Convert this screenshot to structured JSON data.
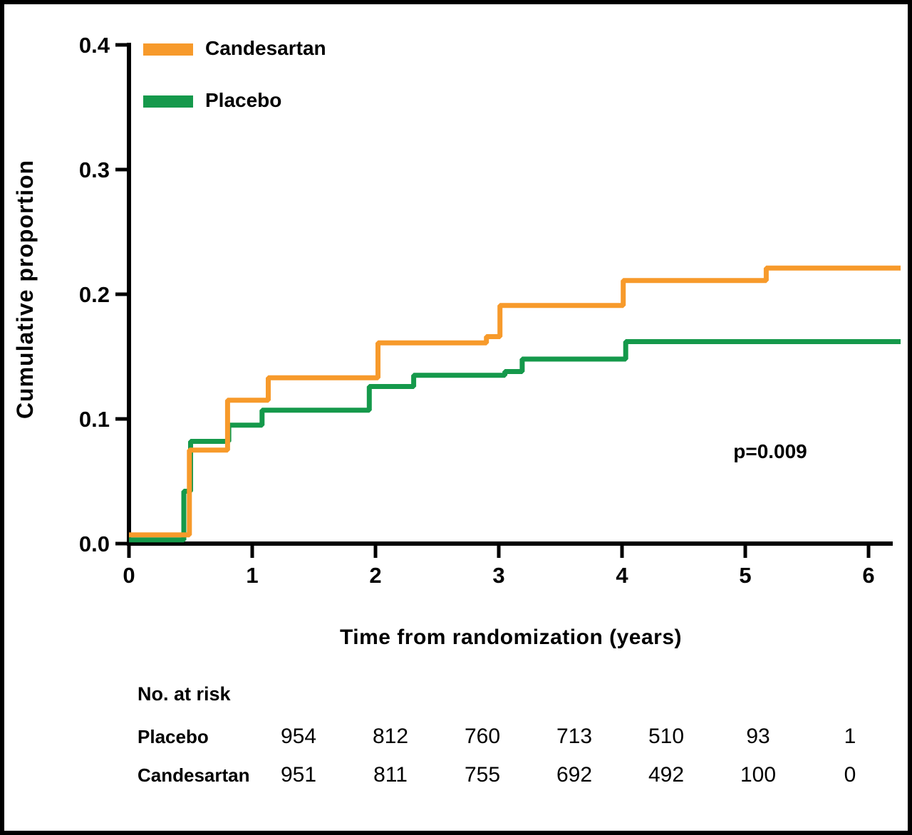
{
  "chart_data": {
    "type": "line",
    "subtype": "kaplan-meier-cumulative-incidence-steps",
    "title": "",
    "xlabel": "Time from randomization (years)",
    "ylabel": "Cumulative proportion",
    "xlim": [
      0,
      6.27
    ],
    "ylim": [
      0,
      0.4
    ],
    "x_ticks": [
      0,
      1,
      2,
      3,
      4,
      5,
      6
    ],
    "x_tick_labels": [
      "0",
      "1",
      "2",
      "3",
      "4",
      "5",
      "6"
    ],
    "y_ticks": [
      0,
      0.1,
      0.2,
      0.3,
      0.4
    ],
    "y_tick_labels": [
      "0.0",
      "0.1",
      "0.2",
      "0.3",
      "0.4"
    ],
    "grid": "off",
    "legend_position": "top-left-inside",
    "annotation": {
      "text": "p=0.009",
      "x": 5.2,
      "y": 0.072
    },
    "series": [
      {
        "name": "Candesartan",
        "color": "#F79A2B",
        "steps": [
          [
            0,
            0.007
          ],
          [
            0.49,
            0.075
          ],
          [
            0.8,
            0.115
          ],
          [
            1.13,
            0.133
          ],
          [
            2.02,
            0.161
          ],
          [
            2.9,
            0.166
          ],
          [
            3.01,
            0.191
          ],
          [
            4.01,
            0.211
          ],
          [
            5.17,
            0.221
          ]
        ],
        "end_x": 6.26
      },
      {
        "name": "Placebo",
        "color": "#15994B",
        "steps": [
          [
            0,
            0.003
          ],
          [
            0.445,
            0.042
          ],
          [
            0.5,
            0.082
          ],
          [
            0.81,
            0.095
          ],
          [
            1.08,
            0.107
          ],
          [
            1.95,
            0.126
          ],
          [
            2.31,
            0.135
          ],
          [
            3.05,
            0.138
          ],
          [
            3.19,
            0.148
          ],
          [
            4.03,
            0.162
          ]
        ],
        "end_x": 6.26
      }
    ]
  },
  "risk_table": {
    "header": "No. at risk",
    "rows": [
      {
        "label": "Placebo",
        "values": [
          "954",
          "812",
          "760",
          "713",
          "510",
          "93",
          "1"
        ]
      },
      {
        "label": "Candesartan",
        "values": [
          "951",
          "811",
          "755",
          "692",
          "492",
          "100",
          "0"
        ]
      }
    ]
  },
  "colors": {
    "axis": "#000000",
    "background": "#ffffff"
  }
}
